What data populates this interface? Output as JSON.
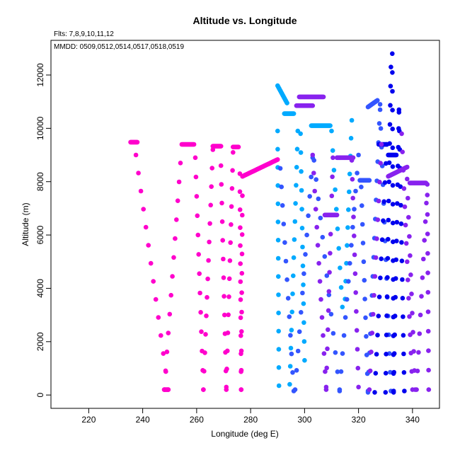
{
  "chart_data": {
    "type": "scatter",
    "title": "Altitude vs. Longitude",
    "notes": [
      "Flts: 7,8,9,10,11,12",
      "MMDD: 0509,0512,0514,0517,0518,0519"
    ],
    "xlabel": "Longitude (deg E)",
    "ylabel": "Altitude (m)",
    "xlim": [
      206,
      350
    ],
    "ylim": [
      -500,
      13300
    ],
    "xticks": [
      220,
      240,
      260,
      280,
      300,
      320,
      340
    ],
    "yticks": [
      0,
      2000,
      4000,
      6000,
      8000,
      10000,
      12000
    ],
    "grid": false,
    "series": [
      {
        "color": "#ff00cc",
        "segments": [
          {
            "kind": "level",
            "x": [
              235.5,
              238.0
            ],
            "y": 9480
          },
          {
            "kind": "profile",
            "x": [
              237.5,
              249.5
            ],
            "y": [
              9000,
              200
            ]
          },
          {
            "kind": "level",
            "x": [
              249.5,
              248.0
            ],
            "y": 200
          },
          {
            "kind": "profile",
            "x": [
              248.0,
              254.0
            ],
            "y": [
              200,
              8700
            ]
          },
          {
            "kind": "level",
            "x": [
              254.5,
              259.0
            ],
            "y": 9400
          },
          {
            "kind": "profile",
            "x": [
              259.5,
              262.5
            ],
            "y": [
              8900,
              200
            ]
          },
          {
            "kind": "profile",
            "x": [
              262.5,
              266.0
            ],
            "y": [
              200,
              9200
            ]
          },
          {
            "kind": "level",
            "x": [
              266.0,
              269.0
            ],
            "y": 9330
          },
          {
            "kind": "profile",
            "x": [
              269.0,
              271.0
            ],
            "y": [
              8600,
              200
            ]
          },
          {
            "kind": "profile",
            "x": [
              271.0,
              273.5
            ],
            "y": [
              300,
              9100
            ]
          },
          {
            "kind": "level",
            "x": [
              273.5,
              275.5
            ],
            "y": 9300
          },
          {
            "kind": "profile",
            "x": [
              276.0,
              276.5
            ],
            "y": [
              8300,
              200
            ]
          },
          {
            "kind": "profile",
            "x": [
              276.5,
              277.0
            ],
            "y": [
              200,
              8200
            ]
          },
          {
            "kind": "ramp",
            "x": [
              277.0,
              290.0
            ],
            "y": [
              8200,
              8830
            ]
          }
        ]
      },
      {
        "color": "#00aaff",
        "segments": [
          {
            "kind": "ramp",
            "x": [
              290.0,
              293.5
            ],
            "y": [
              11600,
              10950
            ]
          },
          {
            "kind": "level",
            "x": [
              292.5,
              296.0
            ],
            "y": 10550
          },
          {
            "kind": "profile",
            "x": [
              290.0,
              290.5
            ],
            "y": [
              9900,
              350
            ]
          },
          {
            "kind": "profile",
            "x": [
              294.5,
              297.5
            ],
            "y": [
              400,
              9900
            ]
          },
          {
            "kind": "profile",
            "x": [
              298.5,
              300.0
            ],
            "y": [
              9800,
              1300
            ]
          },
          {
            "kind": "level",
            "x": [
              302.5,
              309.5
            ],
            "y": 10100
          },
          {
            "kind": "profile",
            "x": [
              310.0,
              314.0
            ],
            "y": [
              9900,
              3300
            ]
          },
          {
            "kind": "profile",
            "x": [
              315.0,
              317.5
            ],
            "y": [
              3600,
              10300
            ]
          }
        ]
      },
      {
        "color": "#3355ff",
        "segments": [
          {
            "kind": "profile",
            "x": [
              291.0,
              296.0
            ],
            "y": [
              8500,
              150
            ]
          },
          {
            "kind": "profile",
            "x": [
              296.5,
              303.0
            ],
            "y": [
              200,
              8900
            ]
          },
          {
            "kind": "profile",
            "x": [
              303.5,
              313.0
            ],
            "y": [
              8800,
              150
            ]
          },
          {
            "kind": "profile",
            "x": [
              313.0,
              320.0
            ],
            "y": [
              200,
              9000
            ]
          },
          {
            "kind": "level",
            "x": [
              320.5,
              324.0
            ],
            "y": 8050
          },
          {
            "kind": "profile",
            "x": [
              321.0,
              323.5
            ],
            "y": [
              7800,
              100
            ]
          },
          {
            "kind": "profile",
            "x": [
              323.5,
              328.0
            ],
            "y": [
              150,
              10900
            ]
          },
          {
            "kind": "ramp",
            "x": [
              323.5,
              327.0
            ],
            "y": [
              10800,
              11050
            ]
          },
          {
            "kind": "profile",
            "x": [
              328.0,
              332.0
            ],
            "y": [
              10700,
              150
            ]
          }
        ]
      },
      {
        "color": "#0000ee",
        "segments": [
          {
            "kind": "profile",
            "x": [
              326.0,
              330.5
            ],
            "y": [
              100,
              9400
            ]
          },
          {
            "kind": "profile",
            "x": [
              330.0,
              332.0
            ],
            "y": [
              100,
              12300
            ]
          },
          {
            "kind": "profile",
            "x": [
              332.5,
              333.0
            ],
            "y": [
              12800,
              100
            ]
          },
          {
            "kind": "profile",
            "x": [
              333.0,
              335.0
            ],
            "y": [
              150,
              10700
            ]
          },
          {
            "kind": "profile",
            "x": [
              335.0,
              337.0
            ],
            "y": [
              10600,
              150
            ]
          },
          {
            "kind": "level",
            "x": [
              327.5,
              330.5
            ],
            "y": 9400
          },
          {
            "kind": "level",
            "x": [
              331.0,
              334.0
            ],
            "y": 9000
          }
        ]
      },
      {
        "color": "#8822ee",
        "segments": [
          {
            "kind": "level",
            "x": [
              297.0,
              303.0
            ],
            "y": 10850
          },
          {
            "kind": "level",
            "x": [
              298.0,
              307.0
            ],
            "y": 11180
          },
          {
            "kind": "profile",
            "x": [
              303.0,
              308.0
            ],
            "y": [
              9000,
              200
            ]
          },
          {
            "kind": "profile",
            "x": [
              308.0,
              310.5
            ],
            "y": [
              300,
              8900
            ]
          },
          {
            "kind": "level",
            "x": [
              307.5,
              312.0
            ],
            "y": 6750
          },
          {
            "kind": "level",
            "x": [
              312.0,
              318.0
            ],
            "y": 8900
          },
          {
            "kind": "profile",
            "x": [
              317.5,
              320.0
            ],
            "y": [
              8800,
              300
            ]
          },
          {
            "kind": "profile",
            "x": [
              324.0,
              328.5
            ],
            "y": [
              200,
              9400
            ]
          },
          {
            "kind": "ramp",
            "x": [
              331.0,
              338.0
            ],
            "y": [
              8200,
              8550
            ]
          },
          {
            "kind": "profile",
            "x": [
              338.0,
              341.0
            ],
            "y": [
              8100,
              200
            ]
          },
          {
            "kind": "level",
            "x": [
              339.0,
              345.0
            ],
            "y": 7950
          },
          {
            "kind": "profile",
            "x": [
              341.5,
              345.5
            ],
            "y": [
              200,
              7900
            ]
          },
          {
            "kind": "profile",
            "x": [
              345.5,
              346.0
            ],
            "y": [
              7500,
              200
            ]
          },
          {
            "kind": "profile",
            "x": [
              336.0,
              340.0
            ],
            "y": [
              9800,
              200
            ]
          }
        ]
      }
    ]
  }
}
